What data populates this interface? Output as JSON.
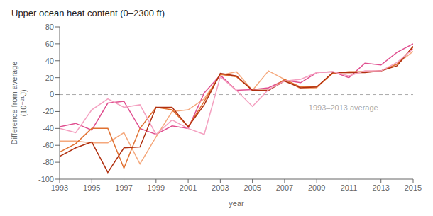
{
  "chart_data": {
    "type": "line",
    "title": "Upper ocean heat content (0–2300 ft)",
    "xlabel": "year",
    "ylabel": "Difference from average\n(10⁻²¹J)",
    "x": [
      1993,
      1994,
      1995,
      1996,
      1997,
      1998,
      1999,
      2000,
      2001,
      2002,
      2003,
      2004,
      2005,
      2006,
      2007,
      2008,
      2009,
      2010,
      2011,
      2012,
      2013,
      2014,
      2015
    ],
    "series": [
      {
        "color": "#e05090",
        "values": [
          -38,
          -34,
          -42,
          -10,
          -8,
          -40,
          -47,
          -37,
          -40,
          2,
          23,
          5,
          6,
          8,
          17,
          14,
          26,
          27,
          20,
          37,
          35,
          50,
          60
        ]
      },
      {
        "color": "#f5a87c",
        "values": [
          -55,
          -55,
          -57,
          -57,
          -45,
          -82,
          -50,
          -20,
          -18,
          -5,
          23,
          27,
          5,
          28,
          18,
          7,
          8,
          26,
          26,
          27,
          28,
          36,
          51
        ]
      },
      {
        "color": "#e07030",
        "values": [
          -68,
          -58,
          -40,
          -40,
          -87,
          -40,
          -15,
          -18,
          -38,
          -8,
          24,
          21,
          5,
          5,
          18,
          9,
          9,
          25,
          27,
          27,
          28,
          36,
          56
        ]
      },
      {
        "color": "#b03010",
        "values": [
          -73,
          -63,
          -56,
          -92,
          -63,
          -62,
          -15,
          -15,
          -38,
          -12,
          25,
          22,
          5,
          5,
          16,
          8,
          9,
          26,
          26,
          26,
          28,
          34,
          57
        ]
      },
      {
        "color": "#f4a0c0",
        "values": [
          -40,
          -45,
          -18,
          -5,
          -15,
          -12,
          -47,
          -30,
          -40,
          -47,
          21,
          5,
          -14,
          6,
          16,
          18,
          26,
          27,
          22,
          28,
          28,
          38,
          54
        ]
      }
    ],
    "reference_line": {
      "y": 0,
      "color": "#aaaaaa",
      "line_style": "dashed"
    },
    "annotations": [
      {
        "text": "1993–2013 average",
        "x": 2008.5,
        "y": -12,
        "color": "#aaaaaa"
      }
    ],
    "xlim": [
      1993,
      2015
    ],
    "ylim": [
      -100,
      80
    ],
    "xticks": [
      1993,
      1995,
      1997,
      1999,
      2001,
      2003,
      2005,
      2007,
      2009,
      2011,
      2013,
      2015
    ],
    "yticks": [
      -100,
      -80,
      -60,
      -40,
      -20,
      0,
      20,
      40,
      60,
      80
    ],
    "grid": false
  }
}
